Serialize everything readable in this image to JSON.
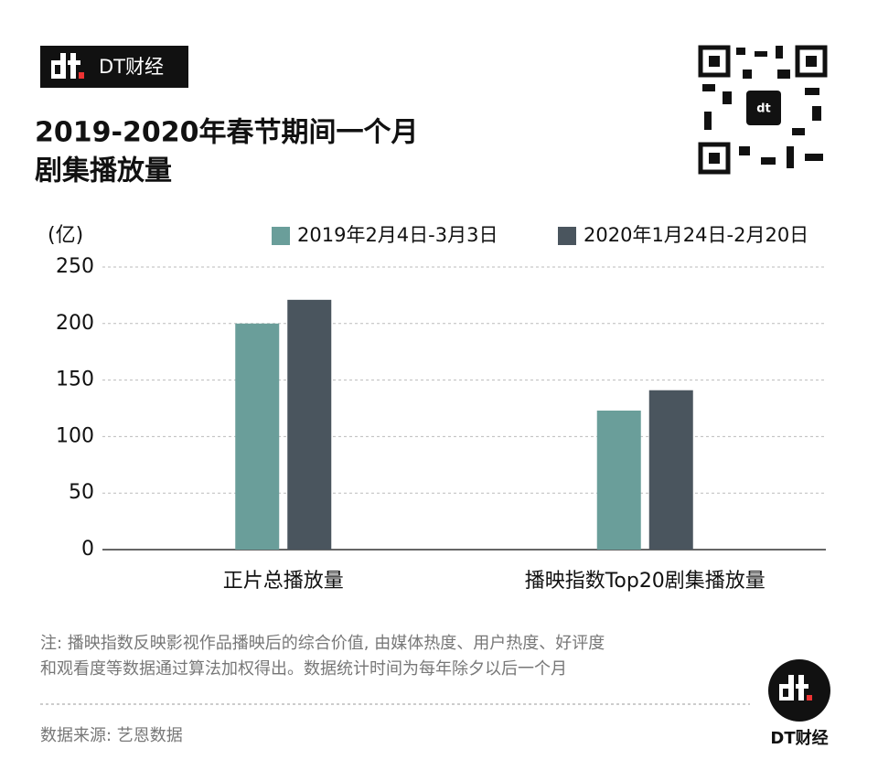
{
  "chart_data": {
    "type": "bar",
    "logo_text": "DT财经",
    "title": [
      "2019-2020年春节期间一个月",
      "剧集播放量"
    ],
    "y_unit": "(亿)",
    "categories": [
      "正片总播放量",
      "播映指数Top20剧集播放量"
    ],
    "series": [
      {
        "name": "2019年2月4日-3月3日",
        "color": "#6a9e9a",
        "values": [
          200,
          123
        ]
      },
      {
        "name": "2020年1月24日-2月20日",
        "color": "#4a555e",
        "values": [
          221,
          141
        ]
      }
    ],
    "ylim": [
      0,
      250
    ],
    "yticks": [
      0,
      50,
      100,
      150,
      200,
      250
    ],
    "grid": true,
    "note": [
      "注: 播映指数反映影视作品播映后的综合价值, 由媒体热度、用户热度、好评度",
      "和观看度等数据通过算法加权得出。数据统计时间为每年除夕以后一个月"
    ],
    "source": "数据来源: 艺恩数据",
    "footer_brand": "DT财经"
  }
}
